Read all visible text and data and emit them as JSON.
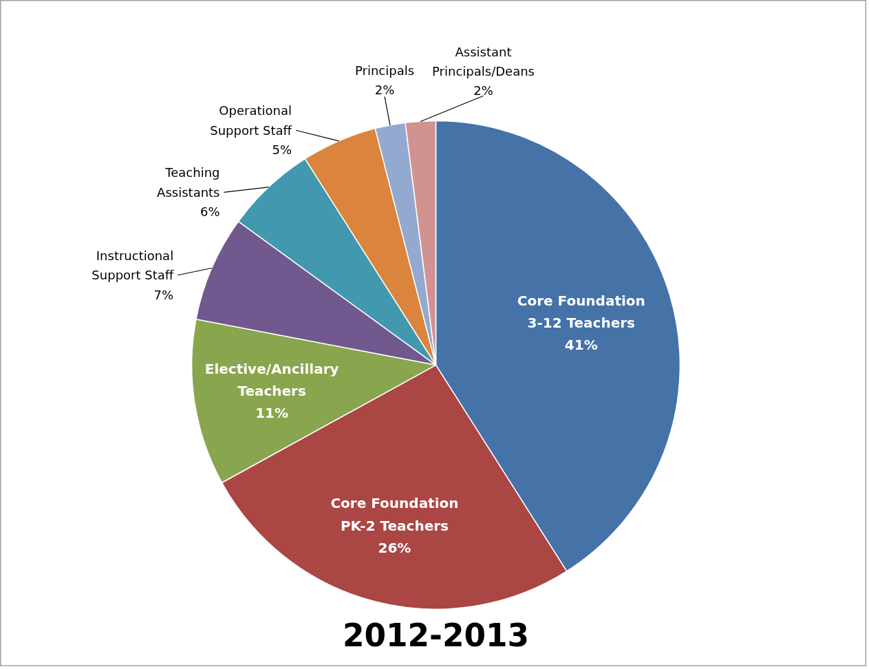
{
  "chart_data": {
    "type": "pie",
    "title": "2012-2013",
    "categories": [
      "Core Foundation 3-12 Teachers",
      "Core Foundation PK-2 Teachers",
      "Elective/Ancillary Teachers",
      "Instructional Support Staff",
      "Teaching Assistants",
      "Operational Support Staff",
      "Principals",
      "Assistant Principals/Deans"
    ],
    "values": [
      41,
      26,
      11,
      7,
      6,
      5,
      2,
      2
    ],
    "value_labels": [
      "41%",
      "26%",
      "11%",
      "7%",
      "6%",
      "5%",
      "2%",
      "2%"
    ],
    "colors": [
      "#4572a7",
      "#aa4643",
      "#89a54e",
      "#71588f",
      "#4198af",
      "#db843d",
      "#93a9cf",
      "#d19392"
    ]
  }
}
